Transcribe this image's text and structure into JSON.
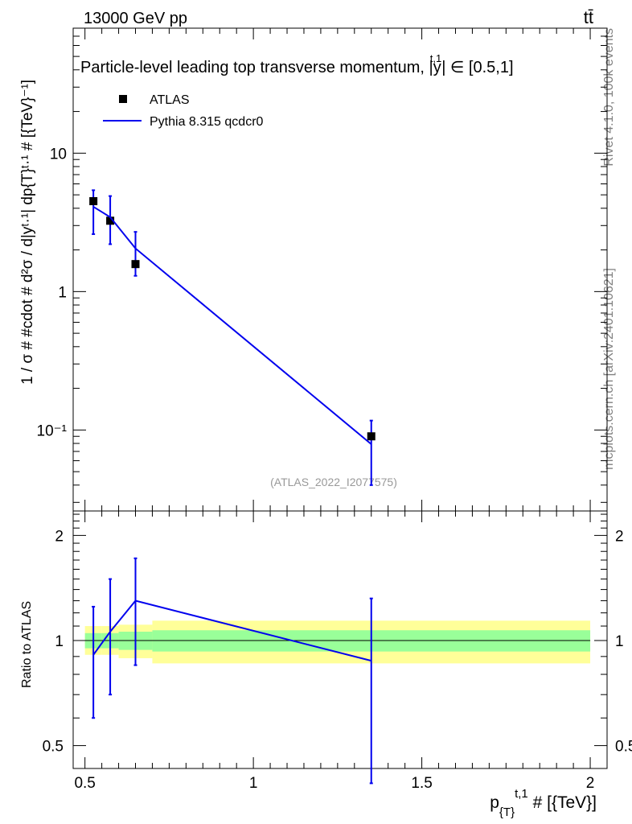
{
  "header": {
    "energy_label": "13000 GeV pp",
    "process_label": "tt̄"
  },
  "side_labels": {
    "rivet": "Rivet 4.1.0,  100k events",
    "mcplots": "mcplots.cern.ch [arXiv:2401.10621]"
  },
  "colors": {
    "data": "#000000",
    "mc": "#0000ee",
    "band_inner": "#99ff99",
    "band_outer": "#ffff99",
    "watermark": "#999999",
    "side_text": "#808080"
  },
  "chart_data": [
    {
      "type": "scatter",
      "panel": "main",
      "title": "Particle-level leading top transverse momentum, |y^{t,1}| ∈ [0.5,1]",
      "title_main": "Particle-level leading top transverse momentum, |",
      "title_y": "y",
      "title_sup": "t,1",
      "title_tail": "| ∈ [0.5,1]",
      "ylabel": "1 / σ # #cdot # d²σ / d|y^{t,1}| dp_{T}^{t,1} # [{TeV}^{-1}]",
      "ylabel_display": "1 / σ # #cdot # d²σ / d|yᵗ·¹| dp{T}ᵗ·¹ # [{TeV}⁻¹]",
      "yscale": "log",
      "ylim": [
        0.026,
        80
      ],
      "xlim": [
        0.465,
        2.05
      ],
      "y_ticks": [
        {
          "value": 0.1,
          "label": "10⁻¹"
        },
        {
          "value": 1,
          "label": "1"
        },
        {
          "value": 10,
          "label": "10"
        }
      ],
      "watermark": "(ATLAS_2022_I2077575)",
      "legend": [
        {
          "label": "ATLAS",
          "kind": "marker"
        },
        {
          "label": "Pythia 8.315 qcdcr0",
          "kind": "line"
        }
      ],
      "series": [
        {
          "name": "ATLAS",
          "x": [
            0.525,
            0.575,
            0.65,
            1.35
          ],
          "y": [
            4.5,
            3.25,
            1.58,
            0.09
          ]
        },
        {
          "name": "Pythia 8.315 qcdcr0",
          "x": [
            0.525,
            0.575,
            0.65,
            1.35
          ],
          "y": [
            4.1,
            3.45,
            2.05,
            0.079
          ],
          "err_low": [
            2.6,
            2.2,
            1.3,
            0.04
          ],
          "err_high": [
            5.4,
            4.9,
            2.7,
            0.117
          ]
        }
      ]
    },
    {
      "type": "line",
      "panel": "ratio",
      "ylabel": "Ratio to ATLAS",
      "xlabel": "p_{T}^{t,1} # [{TeV}]",
      "xlabel_main": "p",
      "xlabel_sub": "{T}",
      "xlabel_sup": "t,1",
      "xlabel_tail": " # [{TeV}]",
      "yscale": "log",
      "ylim": [
        0.43,
        2.35
      ],
      "xlim": [
        0.465,
        2.05
      ],
      "x_ticks": [
        {
          "value": 0.5,
          "label": "0.5"
        },
        {
          "value": 1,
          "label": "1"
        },
        {
          "value": 1.5,
          "label": "1.5"
        },
        {
          "value": 2,
          "label": "2"
        }
      ],
      "y_ticks": [
        {
          "value": 0.5,
          "label": "0.5"
        },
        {
          "value": 1,
          "label": "1"
        },
        {
          "value": 2,
          "label": "2"
        }
      ],
      "bands": [
        {
          "x_low": 0.5,
          "x_high": 0.55,
          "inner": [
            0.95,
            1.05
          ],
          "outer": [
            0.91,
            1.1
          ]
        },
        {
          "x_low": 0.55,
          "x_high": 0.6,
          "inner": [
            0.95,
            1.05
          ],
          "outer": [
            0.91,
            1.1
          ]
        },
        {
          "x_low": 0.6,
          "x_high": 0.7,
          "inner": [
            0.94,
            1.06
          ],
          "outer": [
            0.89,
            1.11
          ]
        },
        {
          "x_low": 0.7,
          "x_high": 2.0,
          "inner": [
            0.93,
            1.07
          ],
          "outer": [
            0.86,
            1.14
          ]
        }
      ],
      "series": [
        {
          "name": "Pythia 8.315 qcdcr0",
          "x": [
            0.525,
            0.575,
            0.65,
            1.35
          ],
          "y": [
            0.91,
            1.06,
            1.3,
            0.875
          ],
          "err_low": [
            0.6,
            0.7,
            0.85,
            0.39
          ],
          "err_high": [
            1.25,
            1.5,
            1.72,
            1.32
          ]
        }
      ]
    }
  ]
}
